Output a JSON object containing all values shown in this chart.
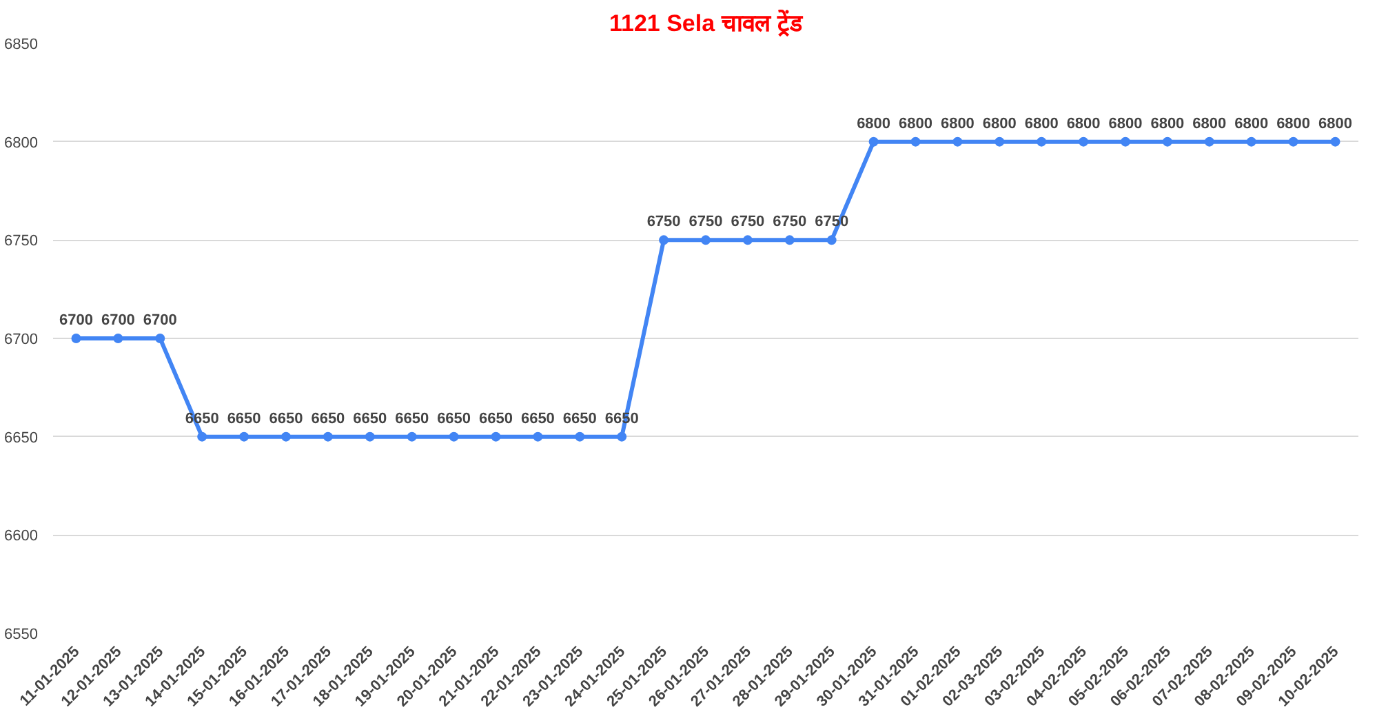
{
  "chart_data": {
    "type": "line",
    "title": "1121 Sela चावल ट्रेंड",
    "categories": [
      "11-01-2025",
      "12-01-2025",
      "13-01-2025",
      "14-01-2025",
      "15-01-2025",
      "16-01-2025",
      "17-01-2025",
      "18-01-2025",
      "19-01-2025",
      "20-01-2025",
      "21-01-2025",
      "22-01-2025",
      "23-01-2025",
      "24-01-2025",
      "25-01-2025",
      "26-01-2025",
      "27-01-2025",
      "28-01-2025",
      "29-01-2025",
      "30-01-2025",
      "31-01-2025",
      "01-02-2025",
      "02-03-2025",
      "03-02-2025",
      "04-02-2025",
      "05-02-2025",
      "06-02-2025",
      "07-02-2025",
      "08-02-2025",
      "09-02-2025",
      "10-02-2025"
    ],
    "series": [
      {
        "color": "#4285f4",
        "values": [
          6700,
          6700,
          6700,
          6650,
          6650,
          6650,
          6650,
          6650,
          6650,
          6650,
          6650,
          6650,
          6650,
          6650,
          6750,
          6750,
          6750,
          6750,
          6750,
          6800,
          6800,
          6800,
          6800,
          6800,
          6800,
          6800,
          6800,
          6800,
          6800,
          6800,
          6800
        ]
      }
    ],
    "ylim": [
      6550,
      6850
    ],
    "yticks": [
      6550,
      6600,
      6650,
      6700,
      6750,
      6800,
      6850
    ],
    "grid": "y",
    "marker": "circle",
    "line_style": "solid",
    "data_labels": true
  }
}
